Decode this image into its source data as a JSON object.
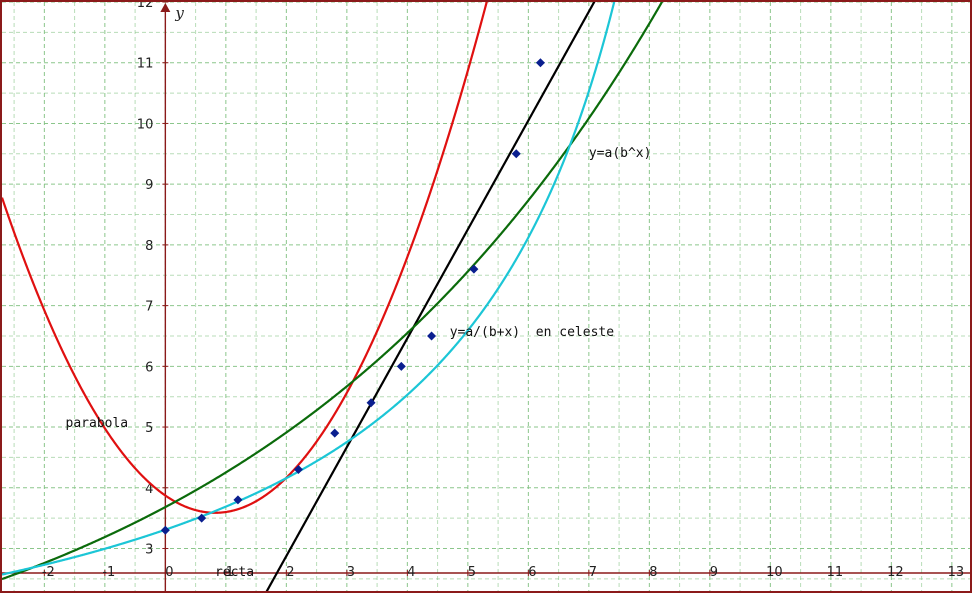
{
  "chart_data": {
    "type": "scatter",
    "xlim": [
      -2.7,
      13.3
    ],
    "ylim": [
      2.3,
      12.0
    ],
    "x_ticks": [
      -2,
      -1,
      0,
      1,
      2,
      3,
      4,
      5,
      6,
      7,
      8,
      9,
      10,
      11,
      12,
      13
    ],
    "y_ticks": [
      3,
      4,
      5,
      6,
      7,
      8,
      9,
      10,
      11,
      12
    ],
    "grid": true,
    "y_axis_label": "y",
    "colors": {
      "grid": "#7fc07f",
      "axis": "#8b1a1a",
      "parabola": "#e01010",
      "line": "#000000",
      "exponential": "#0b6b0b",
      "hyperbola": "#1cc6d6",
      "points": "#0a1f8f"
    },
    "points": {
      "x": [
        0.0,
        0.6,
        1.2,
        2.2,
        2.8,
        3.4,
        3.9,
        4.4,
        5.1,
        5.8,
        6.2
      ],
      "y": [
        3.3,
        3.5,
        3.8,
        4.3,
        4.9,
        5.4,
        6.0,
        6.5,
        7.6,
        9.5,
        11.0
      ]
    },
    "curves": [
      {
        "name": "parabola",
        "kind": "quadratic",
        "a": 0.4178,
        "b": -0.6892,
        "c": 3.8722
      },
      {
        "name": "recta",
        "kind": "linear",
        "m": 1.7931,
        "q": -0.7103
      },
      {
        "name": "y=a(b^x)",
        "kind": "exponential",
        "a": 3.6822,
        "b": 1.1548
      },
      {
        "name": "y=a/(b+x) en celeste",
        "kind": "hyperbola",
        "a": -37.9,
        "b": -10.5,
        "c": -0.3
      }
    ],
    "annotations": [
      {
        "text": "parabola",
        "x": -1.65,
        "y": 5.0
      },
      {
        "text": "recta",
        "x": 0.82,
        "y": 2.55
      },
      {
        "text": "y=a(b^x)",
        "x": 7.0,
        "y": 9.45
      },
      {
        "text": "y=a/(b+x)  en celeste",
        "x": 4.7,
        "y": 6.5
      }
    ]
  }
}
